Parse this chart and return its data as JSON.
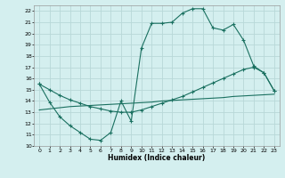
{
  "xlabel": "Humidex (Indice chaleur)",
  "bg_color": "#d4efef",
  "grid_color": "#b8d8d8",
  "line_color": "#1a7060",
  "xlim": [
    -0.5,
    23.5
  ],
  "ylim": [
    10,
    22.5
  ],
  "xticks": [
    0,
    1,
    2,
    3,
    4,
    5,
    6,
    7,
    8,
    9,
    10,
    11,
    12,
    13,
    14,
    15,
    16,
    17,
    18,
    19,
    20,
    21,
    22,
    23
  ],
  "yticks": [
    10,
    11,
    12,
    13,
    14,
    15,
    16,
    17,
    18,
    19,
    20,
    21,
    22
  ],
  "line1_x": [
    0,
    1,
    2,
    3,
    4,
    5,
    6,
    7,
    8,
    9,
    10,
    11,
    12,
    13,
    14,
    15,
    16,
    17,
    18,
    19,
    20,
    21,
    22,
    23
  ],
  "line1_y": [
    15.5,
    13.9,
    12.6,
    11.8,
    11.2,
    10.6,
    10.5,
    11.2,
    14.0,
    12.2,
    18.7,
    20.9,
    20.9,
    21.0,
    21.8,
    22.2,
    22.2,
    20.5,
    20.3,
    20.8,
    19.4,
    17.1,
    16.5,
    14.9
  ],
  "line2_x": [
    0,
    1,
    2,
    3,
    4,
    5,
    6,
    7,
    8,
    9,
    10,
    11,
    12,
    13,
    14,
    15,
    16,
    17,
    18,
    19,
    20,
    21,
    22,
    23
  ],
  "line2_y": [
    15.5,
    15.0,
    14.5,
    14.1,
    13.8,
    13.5,
    13.3,
    13.1,
    13.0,
    13.0,
    13.2,
    13.5,
    13.8,
    14.1,
    14.4,
    14.8,
    15.2,
    15.6,
    16.0,
    16.4,
    16.8,
    17.0,
    16.5,
    14.9
  ],
  "line3_x": [
    0,
    1,
    2,
    3,
    4,
    5,
    6,
    7,
    8,
    9,
    10,
    11,
    12,
    13,
    14,
    15,
    16,
    17,
    18,
    19,
    20,
    21,
    22,
    23
  ],
  "line3_y": [
    13.2,
    13.3,
    13.4,
    13.5,
    13.55,
    13.6,
    13.65,
    13.7,
    13.75,
    13.8,
    13.85,
    13.9,
    14.0,
    14.05,
    14.1,
    14.15,
    14.2,
    14.25,
    14.3,
    14.4,
    14.45,
    14.5,
    14.55,
    14.6
  ]
}
